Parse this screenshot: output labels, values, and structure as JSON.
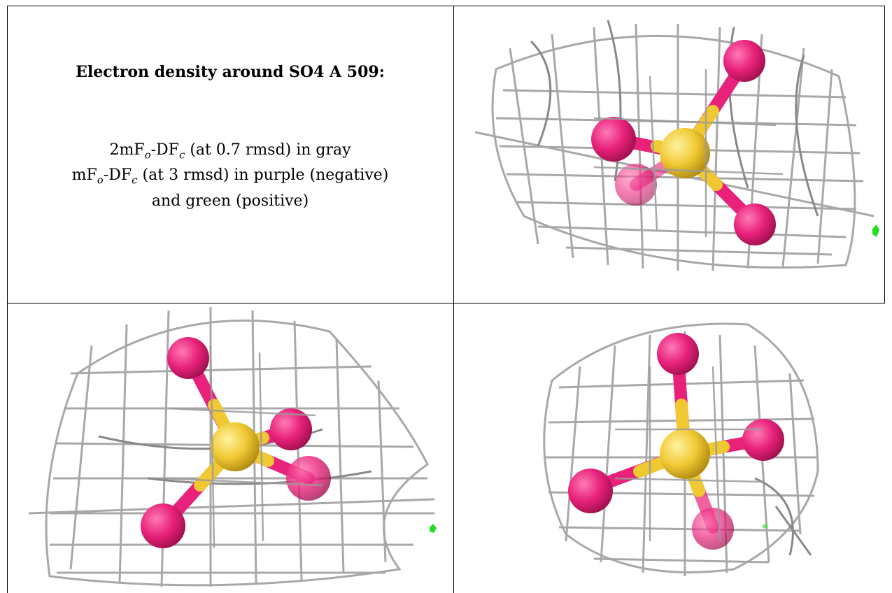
{
  "figure": {
    "title": "Electron density around SO4 A 509:",
    "legend": {
      "line1": {
        "pre": "2mF",
        "sub1": "o",
        "mid": "-DF",
        "sub2": "c",
        "post": " (at 0.7 rmsd) in gray"
      },
      "line2": {
        "pre": "mF",
        "sub1": "o",
        "mid": "-DF",
        "sub2": "c",
        "post": " (at 3 rmsd) in purple (negative)"
      },
      "line3": "and green (positive)"
    },
    "colors": {
      "mesh": "#9a9a9a",
      "oxygen": "#e8217a",
      "sulfur": "#f0c832",
      "positive_density": "#22dd22"
    },
    "panels": [
      {
        "view": "top-right"
      },
      {
        "view": "bottom-left"
      },
      {
        "view": "bottom-right"
      }
    ]
  }
}
